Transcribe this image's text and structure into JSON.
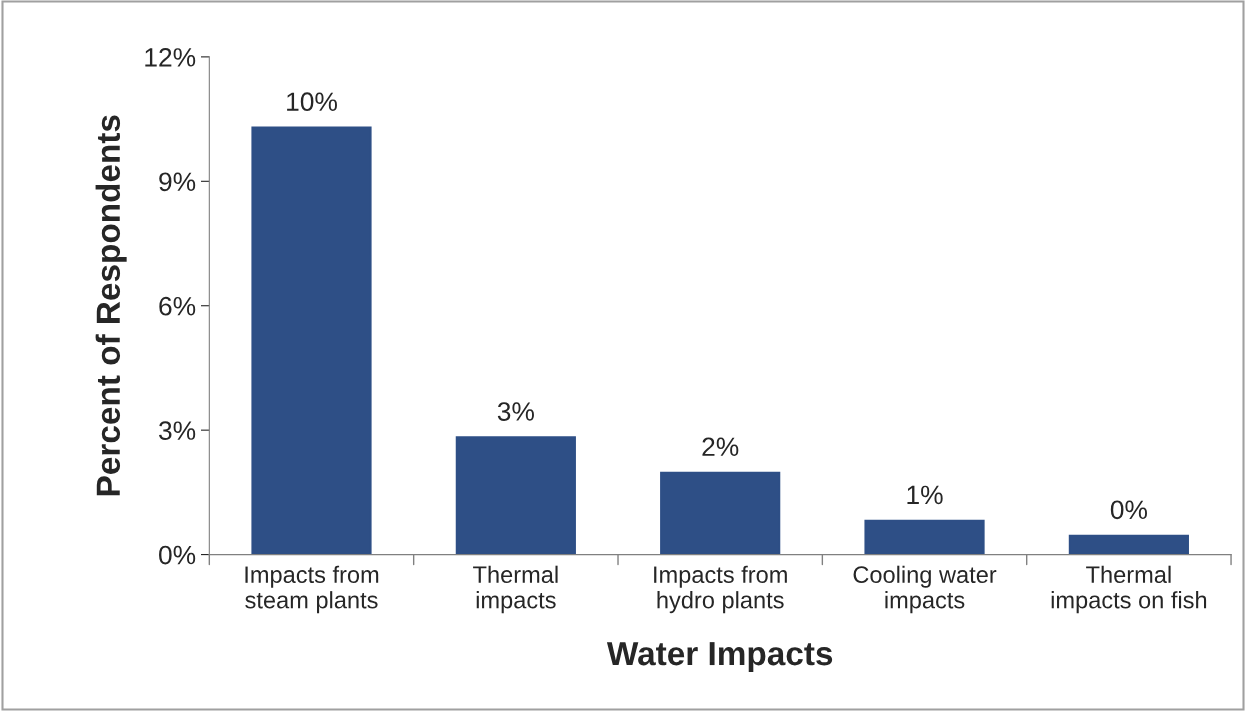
{
  "chart_data": {
    "type": "bar",
    "xlabel": "Water Impacts",
    "ylabel": "Percent of Respondents",
    "categories": [
      "Impacts from\nsteam plants",
      "Thermal\nimpacts",
      "Impacts from\nhydro plants",
      "Cooling water\nimpacts",
      "Thermal\nimpacts on fish"
    ],
    "values": [
      10.3,
      2.83,
      1.98,
      0.82,
      0.46
    ],
    "value_labels": [
      "10%",
      "3%",
      "2%",
      "1%",
      "0%"
    ],
    "color": "#2e4f86",
    "ylim": [
      0,
      12
    ],
    "yticks": [
      {
        "value": 0,
        "label": "0%"
      },
      {
        "value": 3,
        "label": "3%"
      },
      {
        "value": 6,
        "label": "6%"
      },
      {
        "value": 9,
        "label": "9%"
      },
      {
        "value": 12,
        "label": "12%"
      }
    ],
    "grid": false,
    "legend": false
  }
}
